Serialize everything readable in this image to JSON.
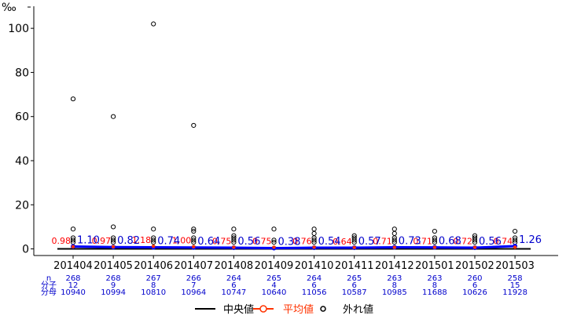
{
  "chart_data": {
    "type": "box",
    "ylabel": "‰",
    "ylim": [
      -3,
      110
    ],
    "yticks": [
      0,
      20,
      40,
      60,
      80,
      100
    ],
    "categories": [
      "201404",
      "201405",
      "201406",
      "201407",
      "201408",
      "201409",
      "201410",
      "201411",
      "201412",
      "201501",
      "201502",
      "201503"
    ],
    "median": [
      0.0,
      0.0,
      0.0,
      0.0,
      0.0,
      0.0,
      0.0,
      0.0,
      0.0,
      0.0,
      0.0,
      0.0
    ],
    "mean": [
      0.98,
      0.97,
      1.18,
      1.0,
      0.75,
      0.75,
      0.76,
      0.64,
      0.71,
      0.71,
      0.72,
      0.74
    ],
    "mean_labels": [
      "0.98",
      "0.97",
      "1.18",
      "1.00",
      "0.75",
      "0.75",
      "0.76",
      "0.64",
      "0.71",
      "0.71",
      "0.72",
      "0.74"
    ],
    "series_value": [
      1.1,
      0.82,
      0.74,
      0.64,
      0.56,
      0.38,
      0.54,
      0.57,
      0.73,
      0.68,
      0.56,
      1.26
    ],
    "series_labels": [
      "1.10",
      "0.82",
      "0.74",
      "0.64",
      "0.56",
      "0.38",
      "0.54",
      "0.57",
      "0.73",
      "0.68",
      "0.56",
      "1.26"
    ],
    "outliers": [
      [
        68,
        9,
        5,
        4,
        3
      ],
      [
        60,
        10,
        5,
        4,
        3
      ],
      [
        102,
        9,
        5,
        4,
        3
      ],
      [
        56,
        9,
        8,
        5,
        4,
        3
      ],
      [
        9,
        6,
        5,
        4,
        3
      ],
      [
        9,
        4,
        3
      ],
      [
        9,
        7,
        5,
        4,
        3
      ],
      [
        6,
        5,
        4,
        3
      ],
      [
        9,
        7,
        5,
        4,
        3
      ],
      [
        8,
        5,
        4,
        3
      ],
      [
        6,
        5,
        4,
        3
      ],
      [
        8,
        5,
        4,
        3
      ]
    ],
    "table": {
      "row_labels": [
        "n",
        "分子",
        "分母"
      ],
      "n": [
        "268",
        "268",
        "267",
        "266",
        "264",
        "265",
        "264",
        "265",
        "263",
        "263",
        "260",
        "258"
      ],
      "numerator": [
        "12",
        "9",
        "8",
        "7",
        "6",
        "4",
        "6",
        "6",
        "8",
        "8",
        "6",
        "15"
      ],
      "denominator": [
        "10940",
        "10994",
        "10810",
        "10964",
        "10747",
        "10640",
        "11056",
        "10587",
        "10985",
        "11688",
        "10626",
        "11928"
      ]
    },
    "legend": [
      "中央値",
      "平均値",
      "外れ値"
    ],
    "colors": {
      "median": "#000000",
      "mean": "#ff3300",
      "series": "#0000ff",
      "outlier": "#000000",
      "table": "#0000cc",
      "mean_label": "#ff0000"
    }
  }
}
